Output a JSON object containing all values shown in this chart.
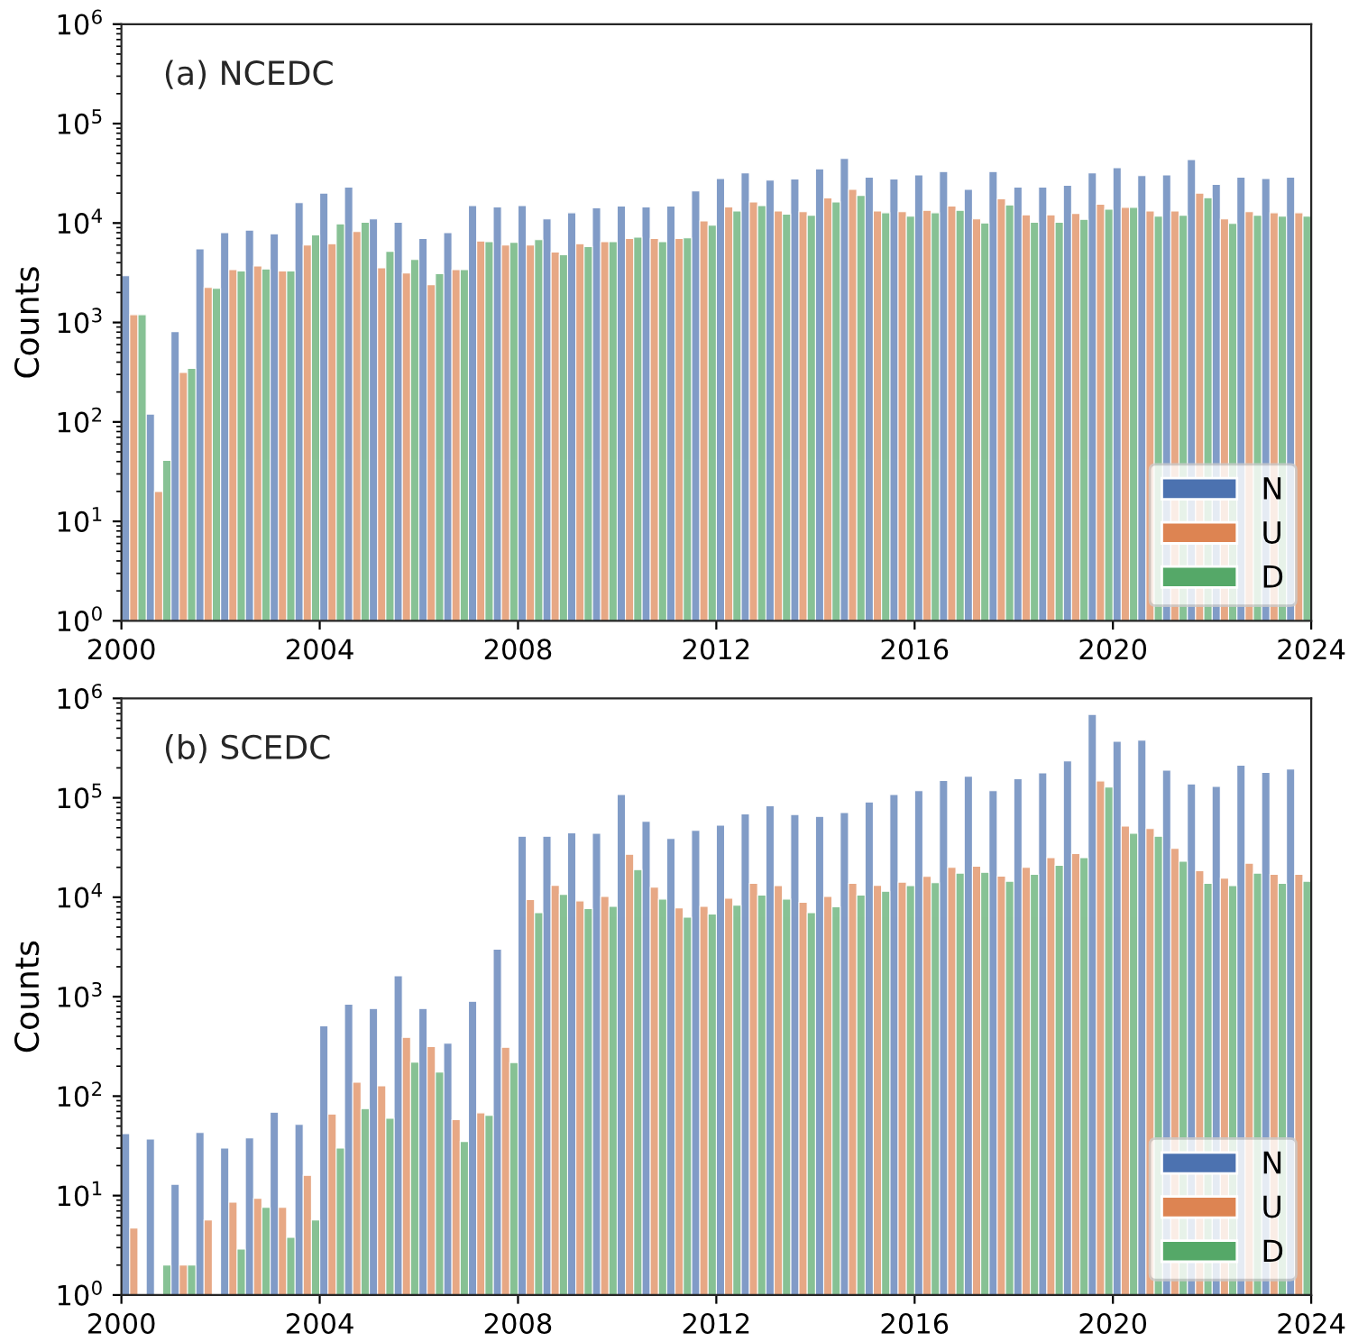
{
  "chart_data": [
    {
      "type": "bar",
      "title": "(a) NCEDC",
      "ylabel": "Counts",
      "log": "y",
      "legend": "lower right",
      "grid": false,
      "x": [
        2000.25,
        2000.75,
        2001.25,
        2001.75,
        2002.25,
        2002.75,
        2003.25,
        2003.75,
        2004.25,
        2004.75,
        2005.25,
        2005.75,
        2006.25,
        2006.75,
        2007.25,
        2007.75,
        2008.25,
        2008.75,
        2009.25,
        2009.75,
        2010.25,
        2010.75,
        2011.25,
        2011.75,
        2012.25,
        2012.75,
        2013.25,
        2013.75,
        2014.25,
        2014.75,
        2015.25,
        2015.75,
        2016.25,
        2016.75,
        2017.25,
        2017.75,
        2018.25,
        2018.75,
        2019.25,
        2019.75,
        2020.25,
        2020.75,
        2021.25,
        2021.75,
        2022.25,
        2022.75,
        2023.25,
        2023.75
      ],
      "xlim": [
        2000,
        2024
      ],
      "xticks": [
        2000,
        2004,
        2008,
        2012,
        2016,
        2020,
        2024
      ],
      "ylim": [
        1,
        1000000
      ],
      "yticks": [
        {
          "value": 1,
          "label": "10$^{0}$"
        },
        {
          "value": 10,
          "label": "10$^{1}$"
        },
        {
          "value": 100,
          "label": "10$^{2}$"
        },
        {
          "value": 1000,
          "label": "10$^{3}$"
        },
        {
          "value": 10000,
          "label": "10$^{4}$"
        },
        {
          "value": 100000,
          "label": "10$^{5}$"
        },
        {
          "value": 1000000,
          "label": "10$^{6}$"
        }
      ],
      "series": [
        {
          "name": "N",
          "color": "#4c72b0",
          "values": [
            2950,
            120,
            810,
            5500,
            8000,
            8500,
            7800,
            16000,
            20000,
            23000,
            11000,
            10200,
            7000,
            8000,
            15000,
            14500,
            15000,
            11000,
            12700,
            14200,
            14800,
            14500,
            14800,
            21000,
            28000,
            32000,
            27000,
            27700,
            35000,
            44500,
            29000,
            27700,
            30500,
            33000,
            21800,
            33000,
            23000,
            23000,
            24000,
            32000,
            36000,
            30000,
            30500,
            43500,
            24500,
            29000,
            28000,
            29000
          ]
        },
        {
          "name": "U",
          "color": "#dd8452",
          "values": [
            1200,
            20,
            315,
            2250,
            3400,
            3700,
            3300,
            6000,
            6200,
            8200,
            3550,
            3150,
            2400,
            3400,
            6600,
            6000,
            6000,
            5100,
            6200,
            6500,
            7000,
            7000,
            7000,
            10500,
            14500,
            16300,
            13200,
            13000,
            17900,
            21800,
            13200,
            13000,
            13400,
            14800,
            11000,
            17500,
            12100,
            12100,
            12500,
            15500,
            14400,
            13200,
            13200,
            20000,
            11000,
            13000,
            12700,
            12700
          ]
        },
        {
          "name": "D",
          "color": "#55a868",
          "values": [
            1200,
            41,
            345,
            2200,
            3300,
            3450,
            3300,
            7600,
            9800,
            10200,
            5200,
            4300,
            3100,
            3400,
            6500,
            6400,
            6800,
            4800,
            5800,
            6500,
            7200,
            6500,
            7100,
            9500,
            13200,
            15000,
            12300,
            12000,
            16300,
            19000,
            12700,
            11700,
            12700,
            13400,
            10000,
            15200,
            10200,
            10200,
            10900,
            13800,
            14400,
            11700,
            12000,
            18000,
            9900,
            12000,
            11700,
            11700
          ]
        }
      ]
    },
    {
      "type": "bar",
      "title": "(b) SCEDC",
      "ylabel": "Counts",
      "log": "y",
      "legend": "lower right",
      "grid": false,
      "x": [
        2000.25,
        2000.75,
        2001.25,
        2001.75,
        2002.25,
        2002.75,
        2003.25,
        2003.75,
        2004.25,
        2004.75,
        2005.25,
        2005.75,
        2006.25,
        2006.75,
        2007.25,
        2007.75,
        2008.25,
        2008.75,
        2009.25,
        2009.75,
        2010.25,
        2010.75,
        2011.25,
        2011.75,
        2012.25,
        2012.75,
        2013.25,
        2013.75,
        2014.25,
        2014.75,
        2015.25,
        2015.75,
        2016.25,
        2016.75,
        2017.25,
        2017.75,
        2018.25,
        2018.75,
        2019.25,
        2019.75,
        2020.25,
        2020.75,
        2021.25,
        2021.75,
        2022.25,
        2022.75,
        2023.25,
        2023.75
      ],
      "xlim": [
        2000,
        2024
      ],
      "xticks": [
        2000,
        2004,
        2008,
        2012,
        2016,
        2020,
        2024
      ],
      "ylim": [
        1,
        1000000
      ],
      "yticks": [
        {
          "value": 1,
          "label": "10$^{0}$"
        },
        {
          "value": 10,
          "label": "10$^{1}$"
        },
        {
          "value": 100,
          "label": "10$^{2}$"
        },
        {
          "value": 1000,
          "label": "10$^{3}$"
        },
        {
          "value": 10000,
          "label": "10$^{4}$"
        },
        {
          "value": 100000,
          "label": "10$^{5}$"
        },
        {
          "value": 1000000,
          "label": "10$^{6}$"
        }
      ],
      "series": [
        {
          "name": "N",
          "color": "#4c72b0",
          "values": [
            42,
            37,
            13,
            43,
            30,
            38,
            69,
            52,
            510,
            840,
            760,
            1620,
            760,
            340,
            900,
            3000,
            41000,
            41000,
            44500,
            44000,
            108000,
            58000,
            39000,
            47000,
            53000,
            69000,
            83000,
            68000,
            65000,
            71000,
            91000,
            108000,
            118000,
            149000,
            165000,
            118000,
            156000,
            178000,
            235000,
            690000,
            370000,
            380000,
            190000,
            138000,
            130000,
            213000,
            180000,
            195000
          ]
        },
        {
          "name": "U",
          "color": "#dd8452",
          "values": [
            4.7,
            null,
            2,
            5.7,
            8.6,
            9.4,
            7.6,
            16,
            66,
            138,
            127,
            390,
            315,
            58,
            68,
            310,
            9500,
            13200,
            9200,
            10200,
            27000,
            12600,
            7800,
            8100,
            9800,
            13800,
            13100,
            8900,
            10200,
            13800,
            13200,
            14200,
            16200,
            20000,
            20500,
            16300,
            20000,
            25000,
            27500,
            148000,
            52000,
            49000,
            31000,
            18500,
            15600,
            22000,
            17000,
            17000
          ]
        },
        {
          "name": "D",
          "color": "#55a868",
          "values": [
            null,
            2,
            2,
            null,
            2.9,
            7.6,
            3.8,
            5.7,
            30,
            75,
            60,
            220,
            175,
            35,
            64,
            218,
            7000,
            10700,
            7700,
            8100,
            19000,
            9600,
            6300,
            6800,
            8300,
            10500,
            9600,
            7000,
            8000,
            10500,
            11500,
            13100,
            14000,
            17500,
            17800,
            14500,
            17000,
            21000,
            25000,
            128000,
            44000,
            41000,
            23000,
            13800,
            13100,
            17500,
            13800,
            14500
          ]
        }
      ]
    }
  ]
}
